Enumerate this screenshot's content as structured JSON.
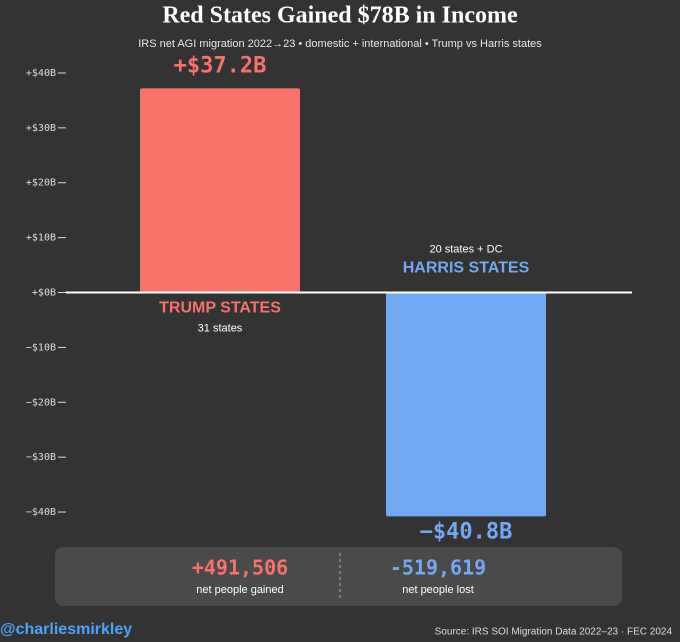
{
  "chart_data": {
    "type": "bar",
    "title": "Red States Gained $78B in Income",
    "subtitle": "IRS net AGI migration 2022→23 • domestic + international • Trump vs Harris states",
    "categories": [
      "TRUMP STATES",
      "HARRIS STATES"
    ],
    "category_notes": [
      "31 states",
      "20 states + DC"
    ],
    "values": [
      37.2,
      -40.8
    ],
    "value_labels": [
      "+$37.2B",
      "−$40.8B"
    ],
    "colors": [
      "#f7726a",
      "#72a9f4"
    ],
    "ylim": [
      -42,
      42
    ],
    "yticks": [
      {
        "value": 40,
        "label": "+$40B"
      },
      {
        "value": 30,
        "label": "+$30B"
      },
      {
        "value": 20,
        "label": "+$20B"
      },
      {
        "value": 10,
        "label": "+$10B"
      },
      {
        "value": 0,
        "label": "+$0B"
      },
      {
        "value": -10,
        "label": "−$10B"
      },
      {
        "value": -20,
        "label": "−$20B"
      },
      {
        "value": -30,
        "label": "−$30B"
      },
      {
        "value": -40,
        "label": "−$40B"
      }
    ],
    "grid": false,
    "summary": [
      {
        "value": "+491,506",
        "label": "net people gained"
      },
      {
        "value": "-519,619",
        "label": "net people lost"
      }
    ],
    "credit": "@charliesmirkley",
    "source": "Source: IRS SOI Migration Data 2022–23 · FEC 2024"
  }
}
